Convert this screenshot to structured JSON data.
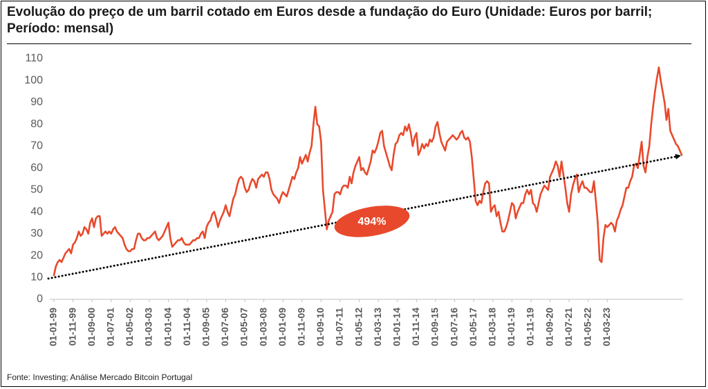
{
  "chart_data": {
    "type": "line",
    "title": "Evolução do preço de um barril cotado em Euros desde a fundação do Euro (Unidade: Euros por barril; Período: mensal)",
    "source": "Fonte: Investing; Análise Mercado Bitcoin Portugal",
    "ylim": [
      0,
      110
    ],
    "yticks": [
      0,
      10,
      20,
      30,
      40,
      50,
      60,
      70,
      80,
      90,
      100,
      110
    ],
    "xtick_labels": [
      "01-01-99",
      "01-11-99",
      "01-09-00",
      "01-07-01",
      "01-05-02",
      "01-03-03",
      "01-01-04",
      "01-11-04",
      "01-09-05",
      "01-07-06",
      "01-05-07",
      "01-03-08",
      "01-01-09",
      "01-11-09",
      "01-09-10",
      "01-07-11",
      "01-05-12",
      "01-03-13",
      "01-01-14",
      "01-11-14",
      "01-09-15",
      "01-07-16",
      "01-05-17",
      "01-03-18",
      "01-01-19",
      "01-11-19",
      "01-09-20",
      "01-07-21",
      "01-05-22",
      "01-03-23"
    ],
    "grid": false,
    "line_color": "#e8492c",
    "series": [
      {
        "values": [
          11,
          15,
          17,
          18,
          17,
          19,
          21,
          22,
          23,
          21,
          25,
          26,
          28,
          31,
          29,
          30,
          33,
          32,
          30,
          35,
          37,
          33,
          37,
          38,
          38,
          29,
          30,
          31,
          30,
          31,
          30,
          32,
          33,
          31,
          30,
          29,
          28,
          25,
          23,
          22,
          22,
          23,
          23,
          27,
          30,
          30,
          28,
          27,
          27,
          28,
          28,
          29,
          30,
          31,
          28,
          27,
          28,
          29,
          31,
          33,
          35,
          28,
          24,
          25,
          26,
          27,
          27,
          28,
          26,
          25,
          25,
          25,
          26,
          27,
          27,
          28,
          28,
          30,
          31,
          28,
          33,
          35,
          36,
          39,
          40,
          37,
          33,
          36,
          38,
          40,
          43,
          40,
          38,
          42,
          46,
          48,
          52,
          55,
          56,
          55,
          51,
          49,
          50,
          53,
          55,
          54,
          51,
          55,
          56,
          57,
          56,
          58,
          58,
          55,
          50,
          48,
          47,
          46,
          44,
          47,
          49,
          48,
          47,
          50,
          53,
          56,
          55,
          58,
          60,
          65,
          62,
          64,
          66,
          63,
          67,
          70,
          80,
          88,
          80,
          79,
          72,
          50,
          41,
          32,
          36,
          38,
          40,
          48,
          49,
          49,
          48,
          51,
          52,
          52,
          51,
          56,
          53,
          58,
          61,
          63,
          65,
          59,
          60,
          58,
          57,
          60,
          63,
          68,
          67,
          69,
          72,
          76,
          77,
          70,
          67,
          64,
          61,
          59,
          66,
          71,
          72,
          75,
          76,
          75,
          79,
          77,
          80,
          76,
          70,
          74,
          76,
          66,
          68,
          71,
          69,
          71,
          70,
          73,
          72,
          74,
          79,
          81,
          76,
          72,
          70,
          68,
          72,
          73,
          74,
          75,
          74,
          73,
          74,
          76,
          77,
          74,
          73,
          74,
          72,
          65,
          55,
          45,
          43,
          45,
          44,
          49,
          53,
          54,
          53,
          40,
          42,
          43,
          38,
          40,
          35,
          31,
          31,
          33,
          36,
          40,
          44,
          43,
          37,
          40,
          42,
          44,
          44,
          48,
          50,
          48,
          50,
          44,
          43,
          40,
          44,
          48,
          50,
          52,
          51,
          50,
          56,
          58,
          60,
          63,
          61,
          56,
          63,
          57,
          51,
          44,
          40,
          48,
          52,
          55,
          57,
          49,
          52,
          54,
          51,
          51,
          50,
          49,
          49,
          54,
          45,
          35,
          18,
          17,
          28,
          34,
          33,
          34,
          35,
          34,
          31,
          36,
          38,
          41,
          43,
          47,
          51,
          51,
          54,
          56,
          61,
          62,
          60,
          66,
          72,
          61,
          58,
          65,
          70,
          80,
          88,
          95,
          101,
          106,
          100,
          95,
          90,
          82,
          87,
          77,
          75,
          73,
          71,
          70,
          68,
          66
        ]
      }
    ],
    "trendline": {
      "start": 9.5,
      "end": 65.5,
      "style": "dotted",
      "color": "#000000"
    },
    "annotations": [
      {
        "text": "494%",
        "near_value": 35,
        "color": "#e8492c"
      }
    ]
  }
}
